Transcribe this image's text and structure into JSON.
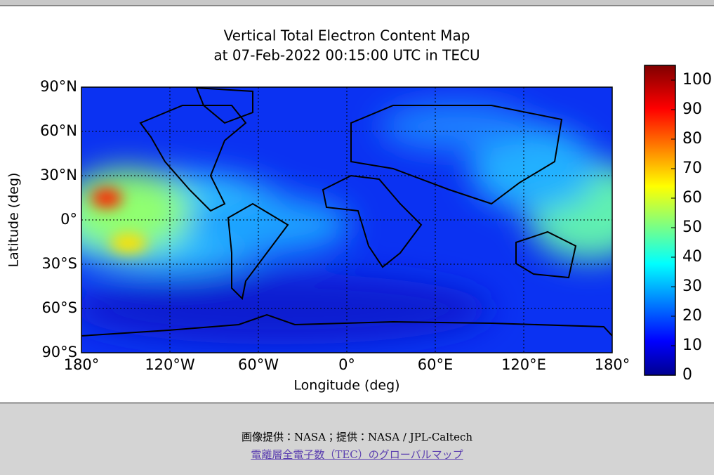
{
  "chart_data": {
    "type": "map",
    "title": "Vertical Total Electron Content Map",
    "subtitle": "at 07-Feb-2022 00:15:00 UTC in TECU",
    "x_label": "Longitude (deg)",
    "y_label": "Latitude (deg)",
    "xlim": [
      -180,
      180
    ],
    "xticks": [
      {
        "value": -180,
        "label": "180°"
      },
      {
        "value": -120,
        "label": "120°W"
      },
      {
        "value": -60,
        "label": "60°W"
      },
      {
        "value": 0,
        "label": "0°"
      },
      {
        "value": 60,
        "label": "60°E"
      },
      {
        "value": 120,
        "label": "120°E"
      },
      {
        "value": 180,
        "label": "180°"
      }
    ],
    "ylim": [
      -90,
      90
    ],
    "yticks": [
      {
        "value": -90,
        "label": "90°S"
      },
      {
        "value": -60,
        "label": "60°S"
      },
      {
        "value": -30,
        "label": "30°S"
      },
      {
        "value": 0,
        "label": "0°"
      },
      {
        "value": 30,
        "label": "30°N"
      },
      {
        "value": 60,
        "label": "60°N"
      },
      {
        "value": 90,
        "label": "90°N"
      }
    ],
    "grid": true,
    "colorbar_lim": [
      0,
      105
    ],
    "colorbar_ticks": [
      0,
      10,
      20,
      30,
      40,
      50,
      60,
      70,
      80,
      90,
      100
    ]
  },
  "footer": {
    "credit": "画像提供：NASA；提供：NASA / JPL-Caltech",
    "link": "電離層全電子数（TEC）のグローバルマップ"
  }
}
